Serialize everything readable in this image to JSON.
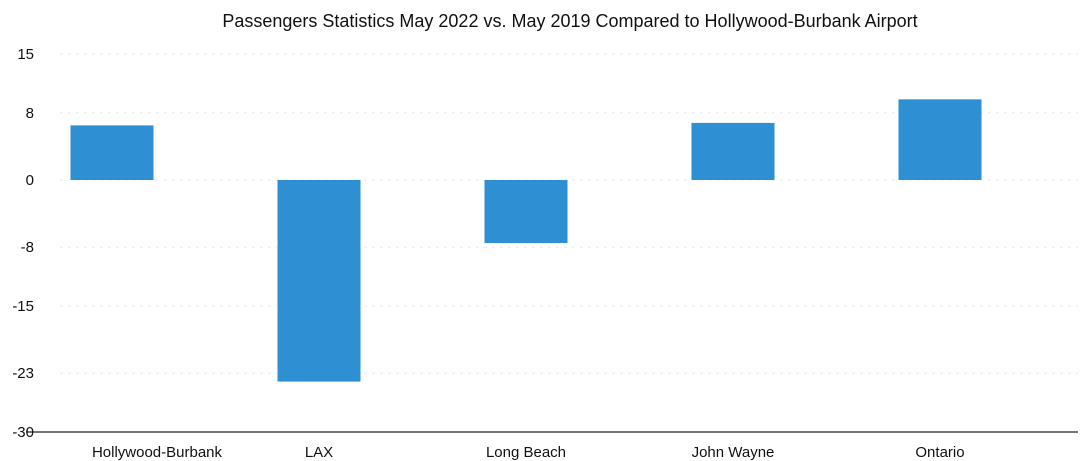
{
  "chart_data": {
    "type": "bar",
    "title": "Passengers Statistics May 2022 vs. May 2019 Compared to Hollywood-Burbank Airport",
    "xlabel": "",
    "ylabel": "",
    "categories": [
      "Hollywood-Burbank",
      "LAX",
      "Long Beach",
      "John Wayne",
      "Ontario"
    ],
    "values": [
      6.5,
      -24,
      -7.5,
      6.8,
      9.6
    ],
    "ylim": [
      -30,
      15
    ],
    "yticks": [
      15,
      8,
      0,
      -8,
      -15,
      -23,
      -30
    ],
    "grid": true,
    "legend": "none",
    "bar_color": "#2e8fd3"
  }
}
